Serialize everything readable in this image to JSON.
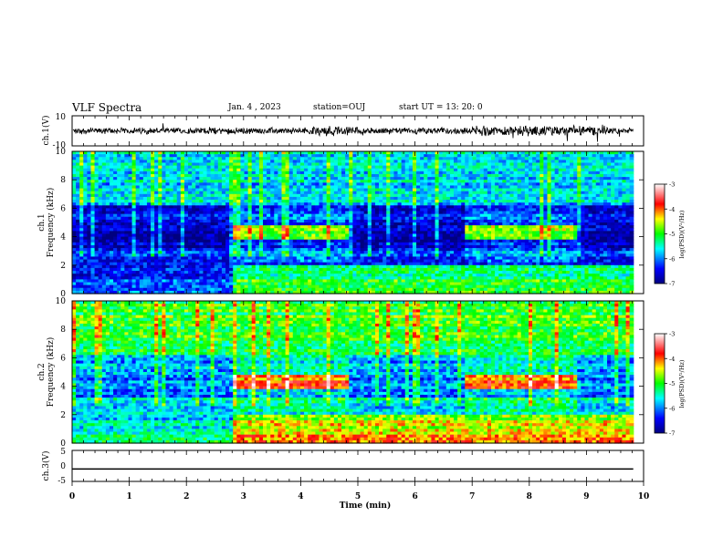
{
  "header": {
    "title": "VLF Spectra",
    "date": "Jan. 4 , 2023",
    "station": "station=OUJ",
    "start": "start UT = 13: 20: 0"
  },
  "chart_data": [
    {
      "type": "line",
      "panel": "ch.1 waveform",
      "ylabel": "ch.1(V)",
      "ylim": [
        -10,
        10
      ],
      "yticks": [
        "10",
        "-10"
      ],
      "xlim": [
        0,
        10
      ],
      "color": "#000000"
    },
    {
      "type": "heatmap",
      "panel": "ch.1 spectrogram",
      "ylabel_line1": "ch.1",
      "ylabel_line2": "Frequency (kHz)",
      "ylim": [
        0,
        10
      ],
      "yticks": [
        0,
        2,
        4,
        6,
        8,
        10
      ],
      "xlim": [
        0,
        10
      ],
      "colorbar": {
        "range": [
          -7,
          -3
        ],
        "ticks": [
          "-3",
          "-4",
          "-5",
          "-6",
          "-7"
        ],
        "label": "log(PSD)(V²/Hz)"
      },
      "event_segments_min": [
        [
          2.9,
          4.95
        ],
        [
          7.0,
          9.0
        ]
      ]
    },
    {
      "type": "heatmap",
      "panel": "ch.2 spectrogram",
      "ylabel_line1": "ch.2",
      "ylabel_line2": "Frequency (kHz)",
      "ylim": [
        0,
        10
      ],
      "yticks": [
        0,
        2,
        4,
        6,
        8,
        10
      ],
      "xlim": [
        0,
        10
      ],
      "colorbar": {
        "range": [
          -7,
          -3
        ],
        "ticks": [
          "-3",
          "-4",
          "-5",
          "-6",
          "-7"
        ],
        "label": "log(PSD)(V²/Hz)"
      },
      "event_segments_min": [
        [
          2.9,
          4.95
        ],
        [
          7.0,
          9.0
        ]
      ]
    },
    {
      "type": "line",
      "panel": "ch.3 waveform",
      "ylabel": "ch.3(V)",
      "ylim": [
        -5,
        5
      ],
      "yticks": [
        "5",
        "0",
        "-5"
      ],
      "xlim": [
        0,
        10
      ],
      "value": -1,
      "color": "#000000"
    }
  ],
  "xaxis": {
    "label": "Time (min)",
    "ticks": [
      "0",
      "1",
      "2",
      "3",
      "4",
      "5",
      "6",
      "7",
      "8",
      "9",
      "10"
    ]
  }
}
